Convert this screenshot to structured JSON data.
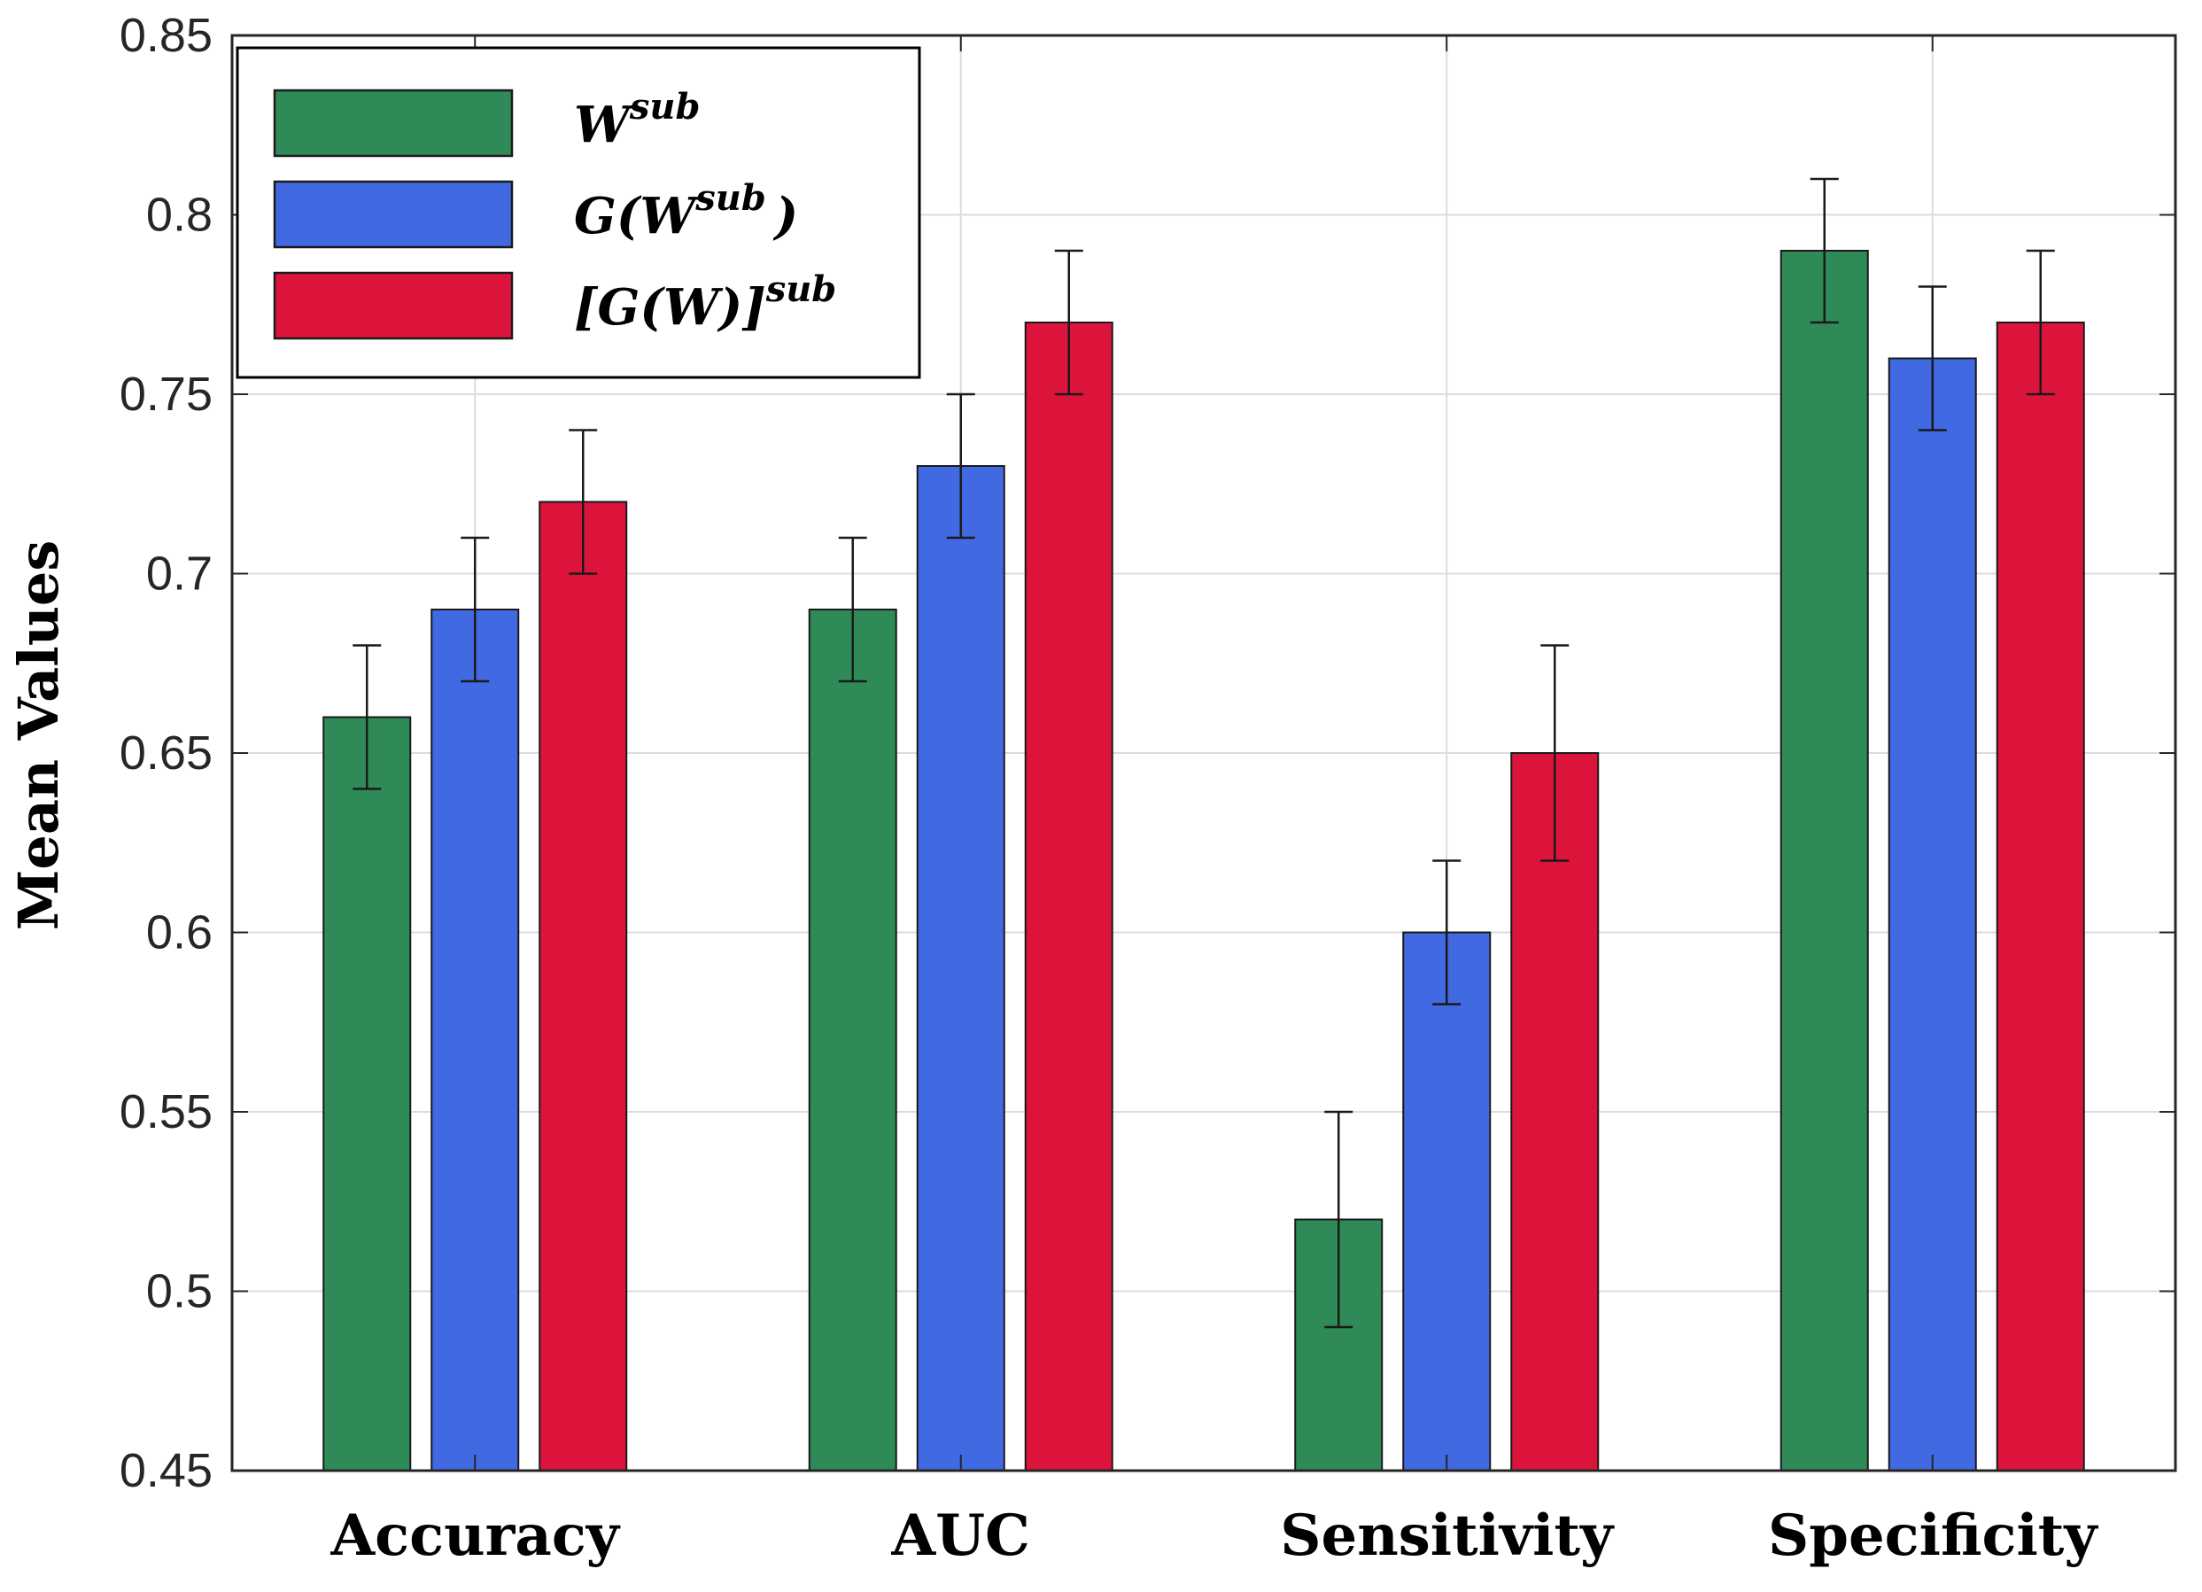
{
  "chart_data": {
    "type": "bar",
    "title": "",
    "xlabel": "",
    "ylabel": "Mean Values",
    "ylim": [
      0.45,
      0.85
    ],
    "yticks": [
      "0.45",
      "0.5",
      "0.55",
      "0.6",
      "0.65",
      "0.7",
      "0.75",
      "0.8",
      "0.85"
    ],
    "grid": true,
    "legend_position": "top-left",
    "categories": [
      "Accuracy",
      "AUC",
      "Sensitivity",
      "Specificity"
    ],
    "series": [
      {
        "name": "W^sub",
        "legend": {
          "base": "W",
          "sup": "sub",
          "tail": ""
        },
        "color": "#2e8b57",
        "values": [
          0.66,
          0.69,
          0.52,
          0.79
        ],
        "error": [
          0.02,
          0.02,
          0.03,
          0.02
        ]
      },
      {
        "name": "G(W^sub)",
        "legend": {
          "base": "G(W",
          "sup": "sub",
          "tail": ")"
        },
        "color": "#4169e1",
        "values": [
          0.69,
          0.73,
          0.6,
          0.76
        ],
        "error": [
          0.02,
          0.02,
          0.02,
          0.02
        ]
      },
      {
        "name": "[G(W)]^sub",
        "legend": {
          "base": "[G(W)]",
          "sup": "sub",
          "tail": ""
        },
        "color": "#dc143c",
        "values": [
          0.72,
          0.77,
          0.65,
          0.77
        ],
        "error": [
          0.02,
          0.02,
          0.03,
          0.02
        ]
      }
    ]
  }
}
